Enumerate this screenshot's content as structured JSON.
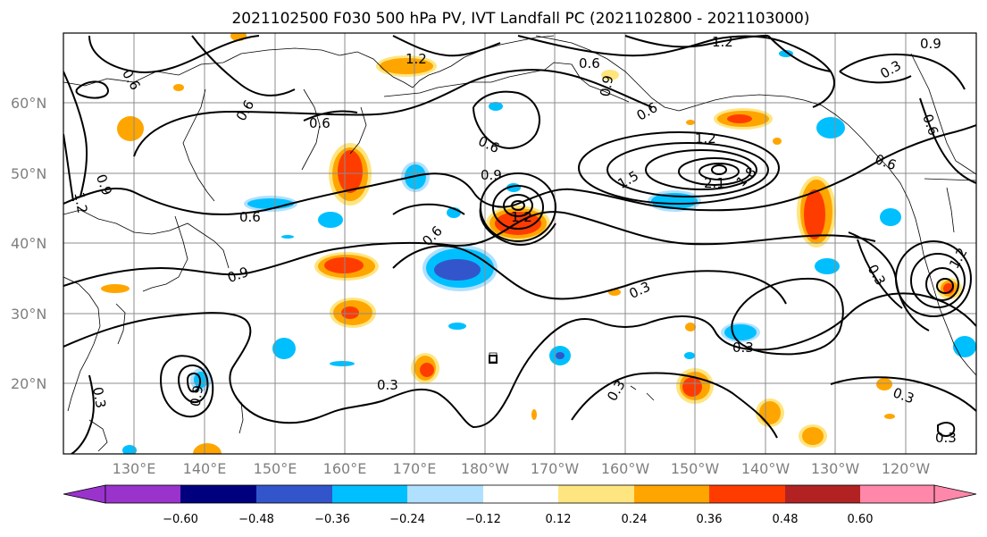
{
  "title": "2021102500 F030 500 hPa PV, IVT Landfall PC (2021102800 - 2021103000)",
  "lat_labels": [
    "60°N",
    "50°N",
    "40°N",
    "30°N",
    "20°N"
  ],
  "lon_labels": [
    "130°E",
    "140°E",
    "150°E",
    "160°E",
    "170°E",
    "180°W",
    "170°W",
    "160°W",
    "150°W",
    "140°W",
    "130°W",
    "120°W"
  ],
  "colorbar": {
    "ticks": [
      "−0.60",
      "−0.48",
      "−0.36",
      "−0.24",
      "−0.12",
      "0.12",
      "0.24",
      "0.36",
      "0.48",
      "0.60"
    ],
    "colors": [
      "#9933cc",
      "#00007f",
      "#3355cc",
      "#00bfff",
      "#b0e0ff",
      "#ffffff",
      "#ffe57f",
      "#ffa500",
      "#ff3c00",
      "#b22222",
      "#ff88aa"
    ]
  },
  "contour_labels": [
    {
      "text": "1.2"
    },
    {
      "text": "0.9"
    },
    {
      "text": "0.6"
    },
    {
      "text": "0.3"
    },
    {
      "text": "1.2"
    },
    {
      "text": "0.6"
    },
    {
      "text": "0.6"
    },
    {
      "text": "0.6"
    },
    {
      "text": "0.9"
    },
    {
      "text": "1.2"
    },
    {
      "text": "1.5"
    },
    {
      "text": "1.2"
    },
    {
      "text": "2.1"
    },
    {
      "text": "1.8"
    },
    {
      "text": "0.6"
    },
    {
      "text": "0.6"
    },
    {
      "text": "0.9"
    },
    {
      "text": "0.6"
    },
    {
      "text": "0.6"
    },
    {
      "text": "0.3"
    },
    {
      "text": "0.3"
    },
    {
      "text": "0.3"
    },
    {
      "text": "0.3"
    },
    {
      "text": "0.3"
    },
    {
      "text": "0.3"
    },
    {
      "text": "0.9"
    },
    {
      "text": "0.9"
    },
    {
      "text": "0.6"
    },
    {
      "text": "1.2"
    },
    {
      "text": "0.6"
    },
    {
      "text": "0.3"
    },
    {
      "text": "0.9"
    },
    {
      "text": "1.2"
    },
    {
      "text": "0.3"
    }
  ]
}
